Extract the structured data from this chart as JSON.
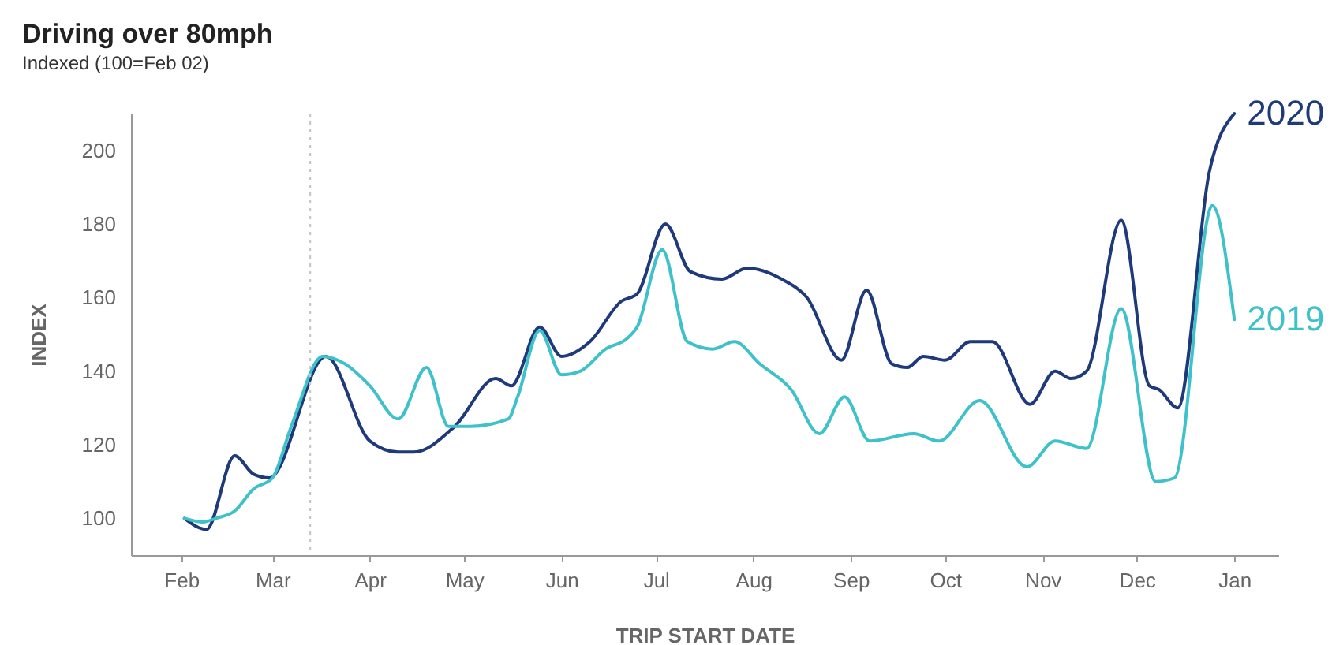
{
  "chart_data": {
    "type": "line",
    "title": "Driving over 80mph",
    "subtitle": "Indexed (100=Feb 02)",
    "xlabel": "TRIP START DATE",
    "ylabel": "INDEX",
    "xlim": [
      "2020-01-16",
      "2021-01-15"
    ],
    "xticks": [
      {
        "value": "2020-02-01",
        "label": "Feb"
      },
      {
        "value": "2020-03-01",
        "label": "Mar"
      },
      {
        "value": "2020-04-01",
        "label": "Apr"
      },
      {
        "value": "2020-05-01",
        "label": "May"
      },
      {
        "value": "2020-06-01",
        "label": "Jun"
      },
      {
        "value": "2020-07-01",
        "label": "Jul"
      },
      {
        "value": "2020-08-01",
        "label": "Aug"
      },
      {
        "value": "2020-09-01",
        "label": "Sep"
      },
      {
        "value": "2020-10-01",
        "label": "Oct"
      },
      {
        "value": "2020-11-01",
        "label": "Nov"
      },
      {
        "value": "2020-12-01",
        "label": "Dec"
      },
      {
        "value": "2021-01-01",
        "label": "Jan"
      }
    ],
    "ylim": [
      90,
      210
    ],
    "yticks": [
      100,
      120,
      140,
      160,
      180,
      200
    ],
    "grid": false,
    "legend": false,
    "marker": "none",
    "line_style": "solid",
    "ref_lines": [
      {
        "axis": "x",
        "value": "2020-03-13",
        "label": null,
        "color": "#c8c8c8",
        "line_style": "dotted"
      }
    ],
    "series": [
      {
        "name": "2020",
        "color": "#1f3a7a",
        "x": [
          "2020-02-02",
          "2020-02-09",
          "2020-02-18",
          "2020-02-24",
          "2020-02-29",
          "2020-03-18",
          "2020-04-01",
          "2020-04-10",
          "2020-04-15",
          "2020-04-28",
          "2020-05-11",
          "2020-05-16",
          "2020-05-25",
          "2020-06-01",
          "2020-06-10",
          "2020-06-20",
          "2020-06-25",
          "2020-07-04",
          "2020-07-12",
          "2020-07-22",
          "2020-07-30",
          "2020-08-10",
          "2020-08-18",
          "2020-08-29",
          "2020-09-06",
          "2020-09-14",
          "2020-09-19",
          "2020-09-24",
          "2020-10-01",
          "2020-10-09",
          "2020-10-16",
          "2020-10-28",
          "2020-11-05",
          "2020-11-10",
          "2020-11-15",
          "2020-11-26",
          "2020-12-05",
          "2020-12-08",
          "2020-12-14",
          "2020-12-24",
          "2021-01-01"
        ],
        "values": [
          100,
          97,
          117,
          112,
          111,
          144,
          121,
          118,
          118,
          125,
          138,
          136,
          152,
          144,
          148,
          159,
          161,
          180,
          167,
          165,
          168,
          165,
          160,
          143,
          162,
          142,
          141,
          144,
          143,
          148,
          148,
          131,
          140,
          138,
          140,
          181,
          136,
          135,
          130,
          194,
          210
        ]
      },
      {
        "name": "2019",
        "color": "#3fc1c9",
        "x": [
          "2020-02-02",
          "2020-02-08",
          "2020-02-12",
          "2020-02-18",
          "2020-02-24",
          "2020-03-01",
          "2020-03-07",
          "2020-03-17",
          "2020-03-24",
          "2020-04-01",
          "2020-04-10",
          "2020-04-19",
          "2020-04-26",
          "2020-05-03",
          "2020-05-15",
          "2020-05-18",
          "2020-05-25",
          "2020-06-01",
          "2020-06-07",
          "2020-06-15",
          "2020-06-22",
          "2020-06-25",
          "2020-07-03",
          "2020-07-11",
          "2020-07-19",
          "2020-07-26",
          "2020-08-03",
          "2020-08-13",
          "2020-08-22",
          "2020-08-30",
          "2020-09-07",
          "2020-09-21",
          "2020-09-29",
          "2020-10-12",
          "2020-10-27",
          "2020-11-05",
          "2020-11-15",
          "2020-11-26",
          "2020-12-07",
          "2020-12-13",
          "2020-12-25",
          "2021-01-01"
        ],
        "values": [
          100,
          99,
          100,
          102,
          108,
          111,
          125,
          144,
          142,
          136,
          127,
          141,
          125,
          125,
          127,
          133,
          151,
          139,
          140,
          146,
          149,
          152,
          173,
          148,
          146,
          148,
          142,
          135,
          123,
          133,
          121,
          123,
          121,
          132,
          114,
          121,
          119,
          157,
          110,
          111,
          185,
          154
        ]
      }
    ]
  }
}
